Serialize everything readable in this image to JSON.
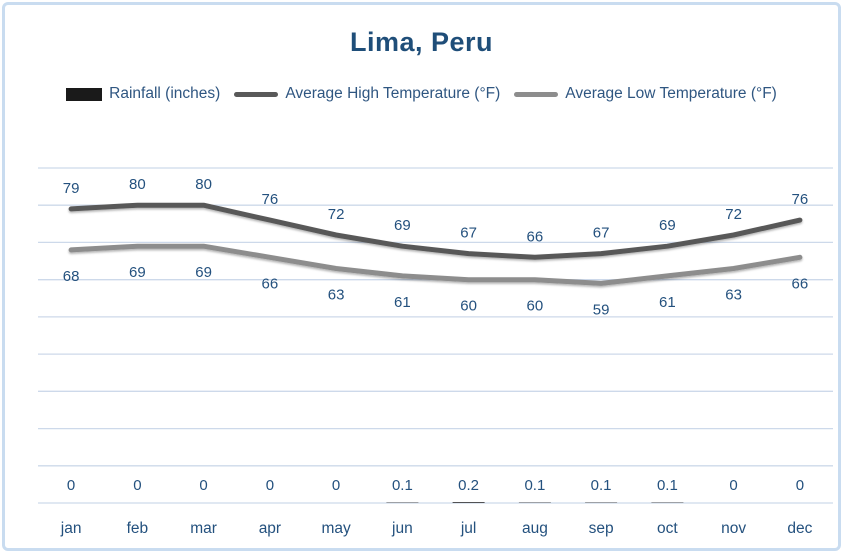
{
  "card": {
    "title": "Lima, Peru"
  },
  "legend": [
    {
      "label": "Rainfall (inches)",
      "type": "bar",
      "color": "#1a1a1a"
    },
    {
      "label": "Average High Temperature (°F)",
      "type": "line",
      "color": "#595959"
    },
    {
      "label": "Average Low Temperature (°F)",
      "type": "line",
      "color": "#8d8d8d"
    }
  ],
  "chart_data": {
    "type": "line",
    "title": "Lima, Peru",
    "categories": [
      "jan",
      "feb",
      "mar",
      "apr",
      "may",
      "jun",
      "jul",
      "aug",
      "sep",
      "oct",
      "nov",
      "dec"
    ],
    "series": [
      {
        "name": "Rainfall (inches)",
        "type": "bar",
        "color": "#1a1a1a",
        "values": [
          0,
          0,
          0,
          0,
          0,
          0.1,
          0.2,
          0.1,
          0.1,
          0.1,
          0,
          0
        ],
        "labels": "baseline"
      },
      {
        "name": "Average High Temperature (°F)",
        "type": "line",
        "color": "#595959",
        "values": [
          79,
          80,
          80,
          76,
          72,
          69,
          67,
          66,
          67,
          69,
          72,
          76
        ],
        "labels": "above"
      },
      {
        "name": "Average Low Temperature (°F)",
        "type": "line",
        "color": "#8d8d8d",
        "values": [
          68,
          69,
          69,
          66,
          63,
          61,
          60,
          60,
          59,
          61,
          63,
          66
        ],
        "labels": "below"
      }
    ],
    "xlabel": "",
    "ylabel": "",
    "ylim": [
      0,
      90
    ],
    "grid_step": 10,
    "grid": true,
    "legend_position": "top",
    "gridline_color": "#cdd9ea",
    "label_color": "#24517e"
  }
}
